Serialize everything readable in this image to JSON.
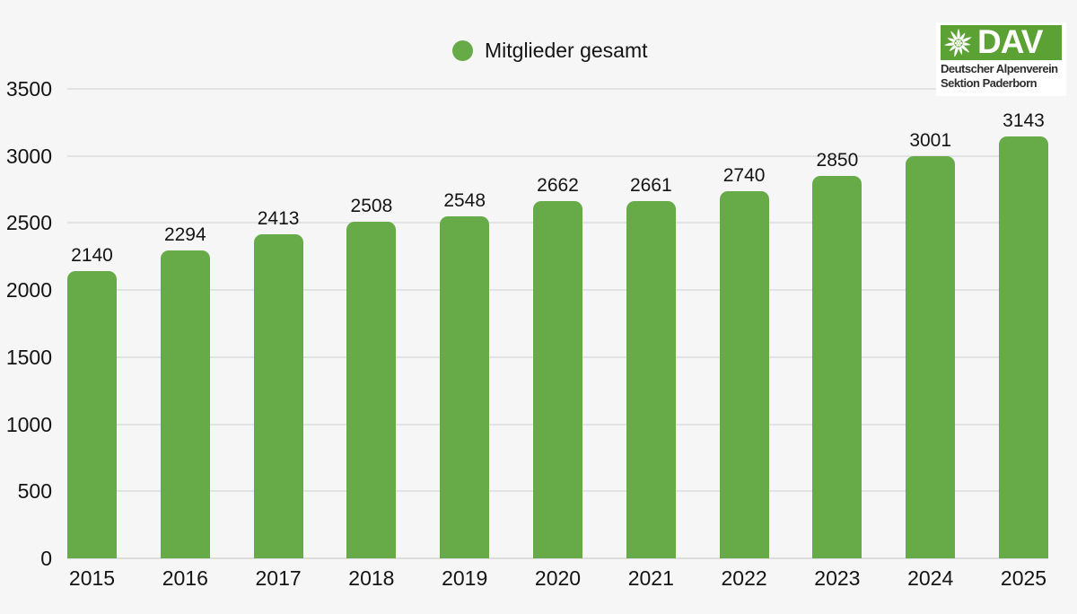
{
  "chart_data": {
    "type": "bar",
    "title": "",
    "legend_label": "Mitglieder gesamt",
    "legend_position": "top-center",
    "categories": [
      "2015",
      "2016",
      "2017",
      "2018",
      "2019",
      "2020",
      "2021",
      "2022",
      "2023",
      "2024",
      "2025"
    ],
    "series": [
      {
        "name": "Mitglieder gesamt",
        "values": [
          2140,
          2294,
          2413,
          2508,
          2548,
          2662,
          2661,
          2740,
          2850,
          3001,
          3143
        ],
        "color": "#67AB49"
      }
    ],
    "value_labels": true,
    "xlabel": "",
    "ylabel": "",
    "ylim": [
      0,
      3500
    ],
    "yticks": [
      0,
      500,
      1000,
      1500,
      2000,
      2500,
      3000,
      3500
    ],
    "grid": true,
    "bar_style": "rounded-top"
  },
  "logo": {
    "brand": "DAV",
    "line1": "Deutscher Alpenverein",
    "line2": "Sektion Paderborn"
  },
  "colors": {
    "background": "#F6F6F7",
    "bar": "#67AB49",
    "gridline": "#E3E3E5",
    "gridline_zero": "#DCDCDE",
    "text": "#141414",
    "logo_green": "#5BA133",
    "logo_bg": "#FFFFFF",
    "logo_text": "#2E2E30"
  }
}
